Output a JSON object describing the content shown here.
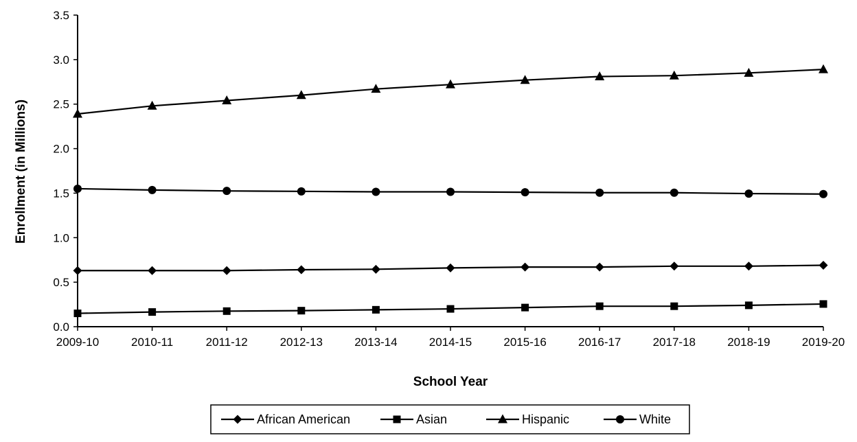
{
  "chart_data": {
    "type": "line",
    "title": "",
    "xlabel": "School Year",
    "ylabel": "Enrollment (in Millions)",
    "categories": [
      "2009-10",
      "2010-11",
      "2011-12",
      "2012-13",
      "2013-14",
      "2014-15",
      "2015-16",
      "2016-17",
      "2017-18",
      "2018-19",
      "2019-20"
    ],
    "ylim": [
      0,
      3.5
    ],
    "yticks": [
      "0.0",
      "0.5",
      "1.0",
      "1.5",
      "2.0",
      "2.5",
      "3.0",
      "3.5"
    ],
    "grid": false,
    "legend_position": "bottom",
    "series": [
      {
        "name": "African American",
        "marker": "diamond",
        "values": [
          0.63,
          0.63,
          0.63,
          0.64,
          0.645,
          0.66,
          0.67,
          0.67,
          0.68,
          0.68,
          0.69
        ]
      },
      {
        "name": "Asian",
        "marker": "square",
        "values": [
          0.15,
          0.165,
          0.175,
          0.18,
          0.19,
          0.2,
          0.215,
          0.23,
          0.23,
          0.24,
          0.255
        ]
      },
      {
        "name": "Hispanic",
        "marker": "triangle",
        "values": [
          2.39,
          2.48,
          2.54,
          2.6,
          2.67,
          2.72,
          2.77,
          2.81,
          2.82,
          2.85,
          2.89
        ]
      },
      {
        "name": "White",
        "marker": "circle",
        "values": [
          1.55,
          1.535,
          1.525,
          1.52,
          1.515,
          1.515,
          1.51,
          1.505,
          1.505,
          1.495,
          1.49
        ]
      }
    ],
    "line_color": "#000000"
  }
}
